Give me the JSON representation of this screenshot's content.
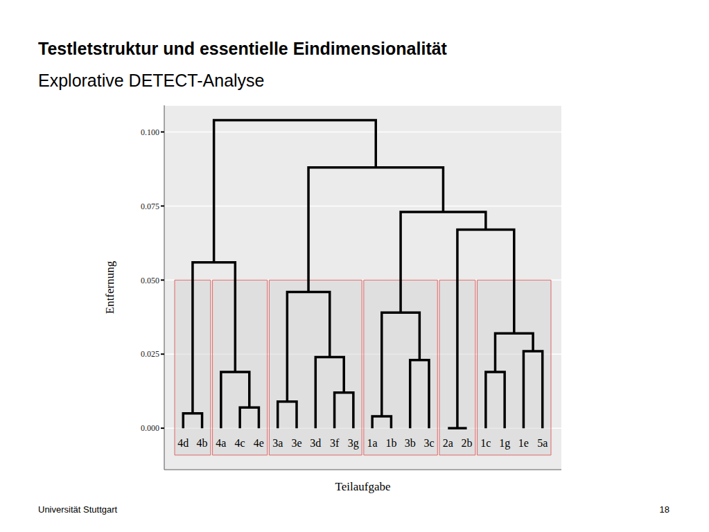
{
  "slide": {
    "title": "Testletstruktur und essentielle Eindimensionalität",
    "subtitle": "Explorative DETECT-Analyse",
    "footer": "Universität Stuttgart",
    "page": 18
  },
  "chart_data": {
    "type": "dendrogram",
    "x_label": "Teilaufgabe",
    "y_label": "Entfernung",
    "categories": [
      "4d",
      "4b",
      "4a",
      "4c",
      "4e",
      "3a",
      "3e",
      "3d",
      "3f",
      "3g",
      "1a",
      "1b",
      "3b",
      "3c",
      "2a",
      "2b",
      "1c",
      "1g",
      "1e",
      "5a"
    ],
    "ylim": [
      -0.014,
      0.109
    ],
    "yticks": [
      {
        "value": 0,
        "label": "0.000"
      },
      0.025,
      {
        "value": 0.05,
        "label": "0.050"
      },
      0.075,
      {
        "value": 0.1,
        "label": "0.100"
      }
    ],
    "grid": true,
    "cut_height": 0.05,
    "clusters": [
      [
        "4d",
        "4b"
      ],
      [
        "4a",
        "4c",
        "4e"
      ],
      [
        "3a",
        "3e",
        "3d",
        "3f",
        "3g"
      ],
      [
        "1a",
        "1b",
        "3b",
        "3c"
      ],
      [
        "2a",
        "2b"
      ],
      [
        "1c",
        "1g",
        "1e",
        "5a"
      ]
    ],
    "tree": {
      "height": 0.104,
      "children": [
        {
          "height": 0.056,
          "children": [
            {
              "height": 0.005,
              "children": [
                "4d",
                "4b"
              ]
            },
            {
              "height": 0.019,
              "children": [
                "4a",
                {
                  "height": 0.007,
                  "children": [
                    "4c",
                    "4e"
                  ]
                }
              ]
            }
          ]
        },
        {
          "height": 0.088,
          "children": [
            {
              "height": 0.046,
              "children": [
                {
                  "height": 0.009,
                  "children": [
                    "3a",
                    "3e"
                  ]
                },
                {
                  "height": 0.024,
                  "children": [
                    "3d",
                    {
                      "height": 0.012,
                      "children": [
                        "3f",
                        "3g"
                      ]
                    }
                  ]
                }
              ]
            },
            {
              "height": 0.073,
              "children": [
                {
                  "height": 0.039,
                  "children": [
                    {
                      "height": 0.004,
                      "children": [
                        "1a",
                        "1b"
                      ]
                    },
                    {
                      "height": 0.023,
                      "children": [
                        "3b",
                        "3c"
                      ]
                    }
                  ]
                },
                {
                  "height": 0.067,
                  "children": [
                    {
                      "height": 0,
                      "children": [
                        "2a",
                        "2b"
                      ]
                    },
                    {
                      "height": 0.032,
                      "children": [
                        {
                          "height": 0.019,
                          "children": [
                            "1c",
                            "1g"
                          ]
                        },
                        {
                          "height": 0.026,
                          "children": [
                            "1e",
                            "5a"
                          ]
                        }
                      ]
                    }
                  ]
                }
              ]
            }
          ]
        }
      ]
    }
  }
}
